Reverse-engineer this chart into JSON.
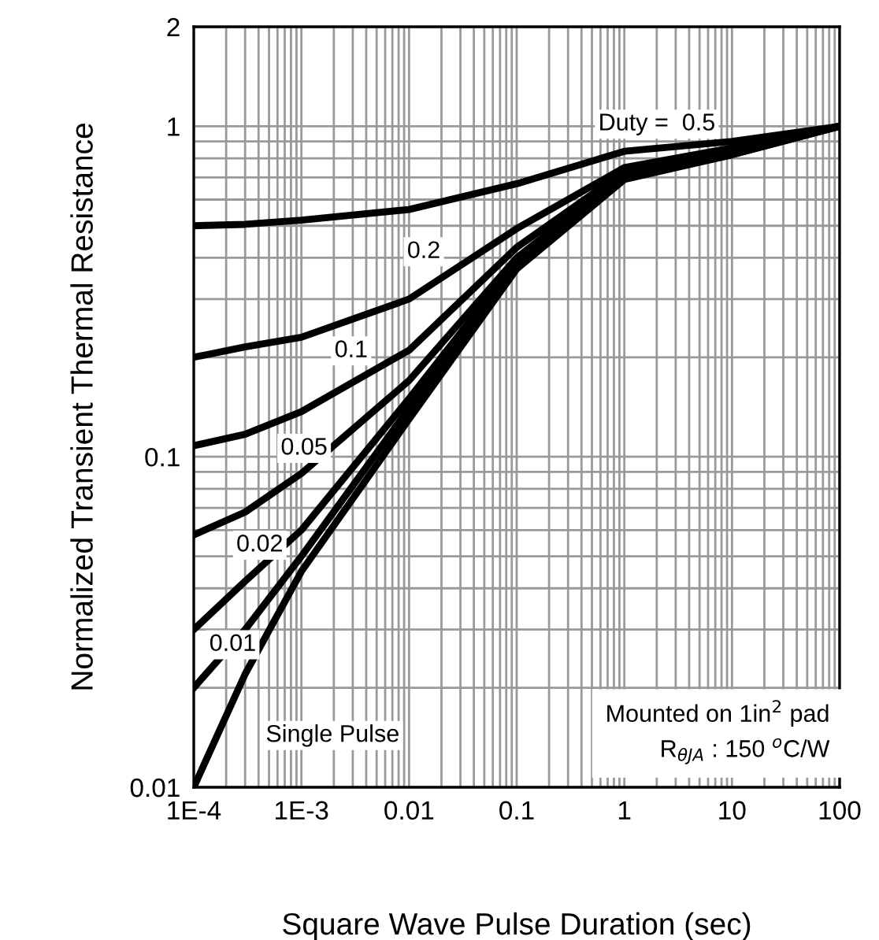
{
  "chart_data": {
    "type": "line",
    "xlabel": "Square Wave Pulse Duration (sec)",
    "ylabel": "Normalized Transient Thermal Resistance",
    "log": "xy",
    "grid": true,
    "marker": "none",
    "line_style": "solid",
    "x": [
      0.0001,
      0.0003,
      0.001,
      0.01,
      0.1,
      1,
      10,
      100
    ],
    "series": [
      {
        "color": "#000000",
        "values": [
          0.5,
          0.505,
          0.52,
          0.56,
          0.67,
          0.84,
          0.9,
          1.0
        ]
      },
      {
        "color": "#000000",
        "values": [
          0.2,
          0.215,
          0.23,
          0.3,
          0.49,
          0.75,
          0.86,
          1.0
        ]
      },
      {
        "color": "#000000",
        "values": [
          0.108,
          0.117,
          0.137,
          0.21,
          0.43,
          0.73,
          0.85,
          1.0
        ]
      },
      {
        "color": "#000000",
        "values": [
          0.058,
          0.068,
          0.089,
          0.17,
          0.4,
          0.72,
          0.84,
          1.0
        ]
      },
      {
        "color": "#000000",
        "values": [
          0.03,
          0.042,
          0.06,
          0.15,
          0.39,
          0.71,
          0.83,
          1.0
        ]
      },
      {
        "color": "#000000",
        "values": [
          0.02,
          0.03,
          0.05,
          0.14,
          0.38,
          0.7,
          0.82,
          1.0
        ]
      },
      {
        "color": "#000000",
        "values": [
          0.01,
          0.022,
          0.045,
          0.13,
          0.37,
          0.69,
          0.82,
          1.0
        ]
      }
    ],
    "xlim": [
      0.0001,
      100
    ],
    "ylim": [
      0.01,
      2
    ],
    "xticks": [
      {
        "value": 0.0001,
        "label": "1E-4"
      },
      {
        "value": 0.001,
        "label": "1E-3"
      },
      0.01,
      0.1,
      1,
      10,
      100
    ],
    "yticks": [
      0.01,
      0.1,
      1,
      2
    ],
    "annotations": [
      "Duty =  0.5",
      {
        "text": "0.2",
        "x": 0.0137,
        "y": 0.417
      },
      {
        "text": "0.1",
        "x": 0.0029,
        "y": 0.209
      },
      {
        "text": "0.05",
        "x": 0.00106,
        "y": 0.106
      },
      {
        "text": "0.02",
        "x": 0.00041,
        "y": 0.054
      },
      {
        "text": "0.01",
        "x": 0.00023,
        "y": 0.027
      },
      "Single Pulse",
      "Mounted on 1in$^{2}$ pad\nR$_{θJA}$ : 150 $^{o}$C/W"
    ]
  }
}
